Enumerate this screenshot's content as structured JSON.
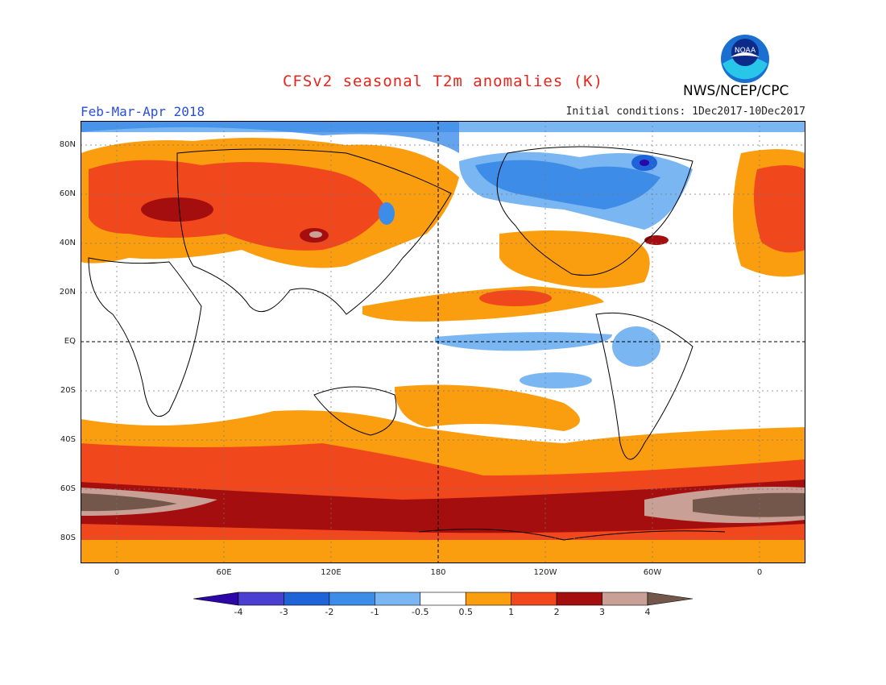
{
  "header": {
    "title": "CFSv2 seasonal T2m anomalies (K)",
    "period": "Feb-Mar-Apr 2018",
    "initial_conditions": "Initial conditions: 1Dec2017-10Dec2017",
    "agency": "NWS/NCEP/CPC",
    "logo_text": "NOAA"
  },
  "axes": {
    "lat_ticks": [
      "80N",
      "60N",
      "40N",
      "20N",
      "EQ",
      "20S",
      "40S",
      "60S",
      "80S"
    ],
    "lon_ticks": [
      "0",
      "60E",
      "120E",
      "180",
      "120W",
      "60W",
      "0"
    ]
  },
  "colorbar": {
    "labels": [
      "-4",
      "-3",
      "-2",
      "-1",
      "-0.5",
      "0.5",
      "1",
      "2",
      "3",
      "4"
    ],
    "colors": [
      "#2a07a6",
      "#4a3fd0",
      "#1f63d8",
      "#3d8ce8",
      "#7ab6f2",
      "#ffffff",
      "#fa9e0f",
      "#f1471c",
      "#a50e0e",
      "#c8a096",
      "#73574a"
    ]
  },
  "palette": {
    "title": "#e8241c",
    "period": "#2a4fd8",
    "land_outline": "#000000",
    "grid": "#777777"
  }
}
